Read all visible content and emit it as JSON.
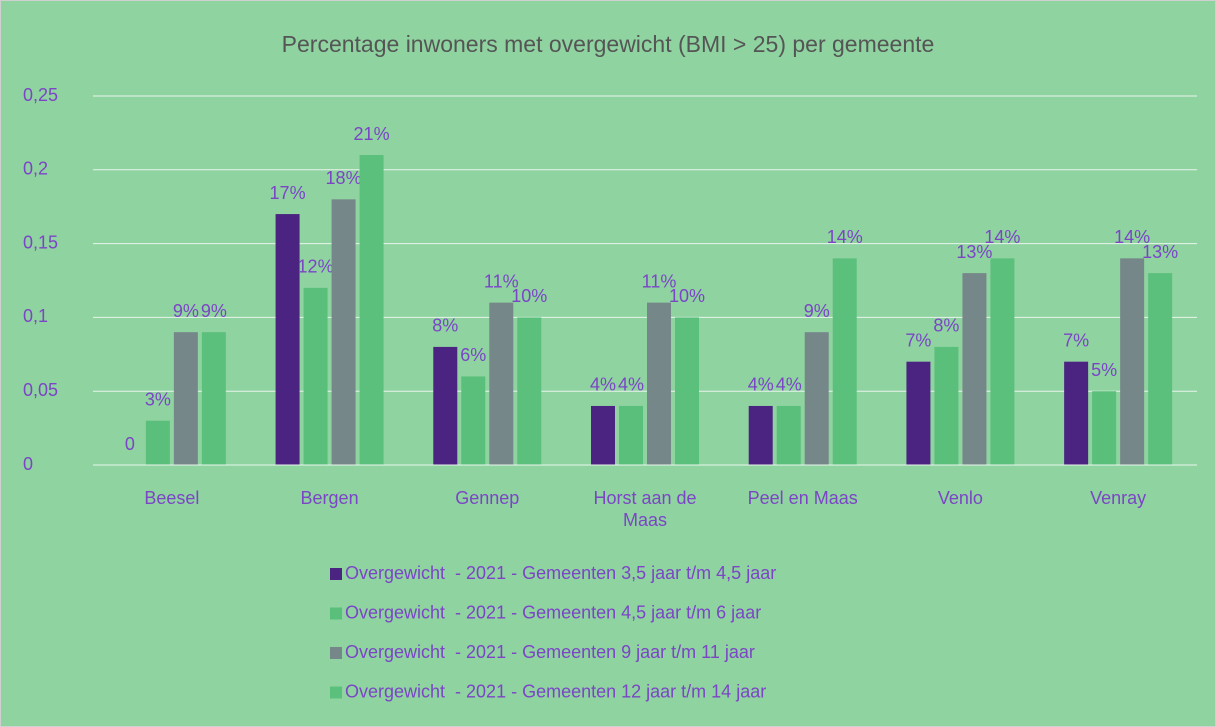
{
  "chart_data": {
    "type": "bar",
    "title": "Percentage inwoners met overgewicht (BMI > 25) per gemeente",
    "categories": [
      "Beesel",
      "Bergen",
      "Gennep",
      "Horst aan de Maas",
      "Peel en Maas",
      "Venlo",
      "Venray"
    ],
    "series": [
      {
        "name": "Overgewicht  - 2021 - Gemeenten 3,5 jaar t/m 4,5 jaar",
        "color": "#4b2380",
        "values": [
          0,
          0.17,
          0.08,
          0.04,
          0.04,
          0.07,
          0.07
        ],
        "value_labels": [
          "0",
          "17%",
          "8%",
          "4%",
          "4%",
          "7%",
          "7%"
        ]
      },
      {
        "name": "Overgewicht  - 2021 - Gemeenten 4,5 jaar t/m 6 jaar",
        "color": "#5abf7a",
        "values": [
          0.03,
          0.12,
          0.06,
          0.04,
          0.04,
          0.08,
          0.05
        ],
        "value_labels": [
          "3%",
          "12%",
          "6%",
          "4%",
          "4%",
          "8%",
          "5%"
        ]
      },
      {
        "name": "Overgewicht  - 2021 - Gemeenten 9 jaar t/m 11 jaar",
        "color": "#76878a",
        "values": [
          0.09,
          0.18,
          0.11,
          0.11,
          0.09,
          0.13,
          0.14
        ],
        "value_labels": [
          "9%",
          "18%",
          "11%",
          "11%",
          "9%",
          "13%",
          "14%"
        ]
      },
      {
        "name": "Overgewicht  - 2021 - Gemeenten 12 jaar t/m 14 jaar",
        "color": "#5cc07d",
        "values": [
          0.09,
          0.21,
          0.1,
          0.1,
          0.14,
          0.14,
          0.13
        ],
        "value_labels": [
          "9%",
          "21%",
          "10%",
          "10%",
          "14%",
          "14%",
          "13%"
        ]
      }
    ],
    "ylim": [
      0,
      0.25
    ],
    "yticks": [
      0,
      {
        "value": 0.05,
        "label": "0,05"
      },
      {
        "value": 0.1,
        "label": "0,1"
      },
      {
        "value": 0.15,
        "label": "0,15"
      },
      {
        "value": 0.2,
        "label": "0,2"
      },
      {
        "value": 0.25,
        "label": "0,25"
      }
    ],
    "grid": true,
    "legend": "bottom"
  }
}
